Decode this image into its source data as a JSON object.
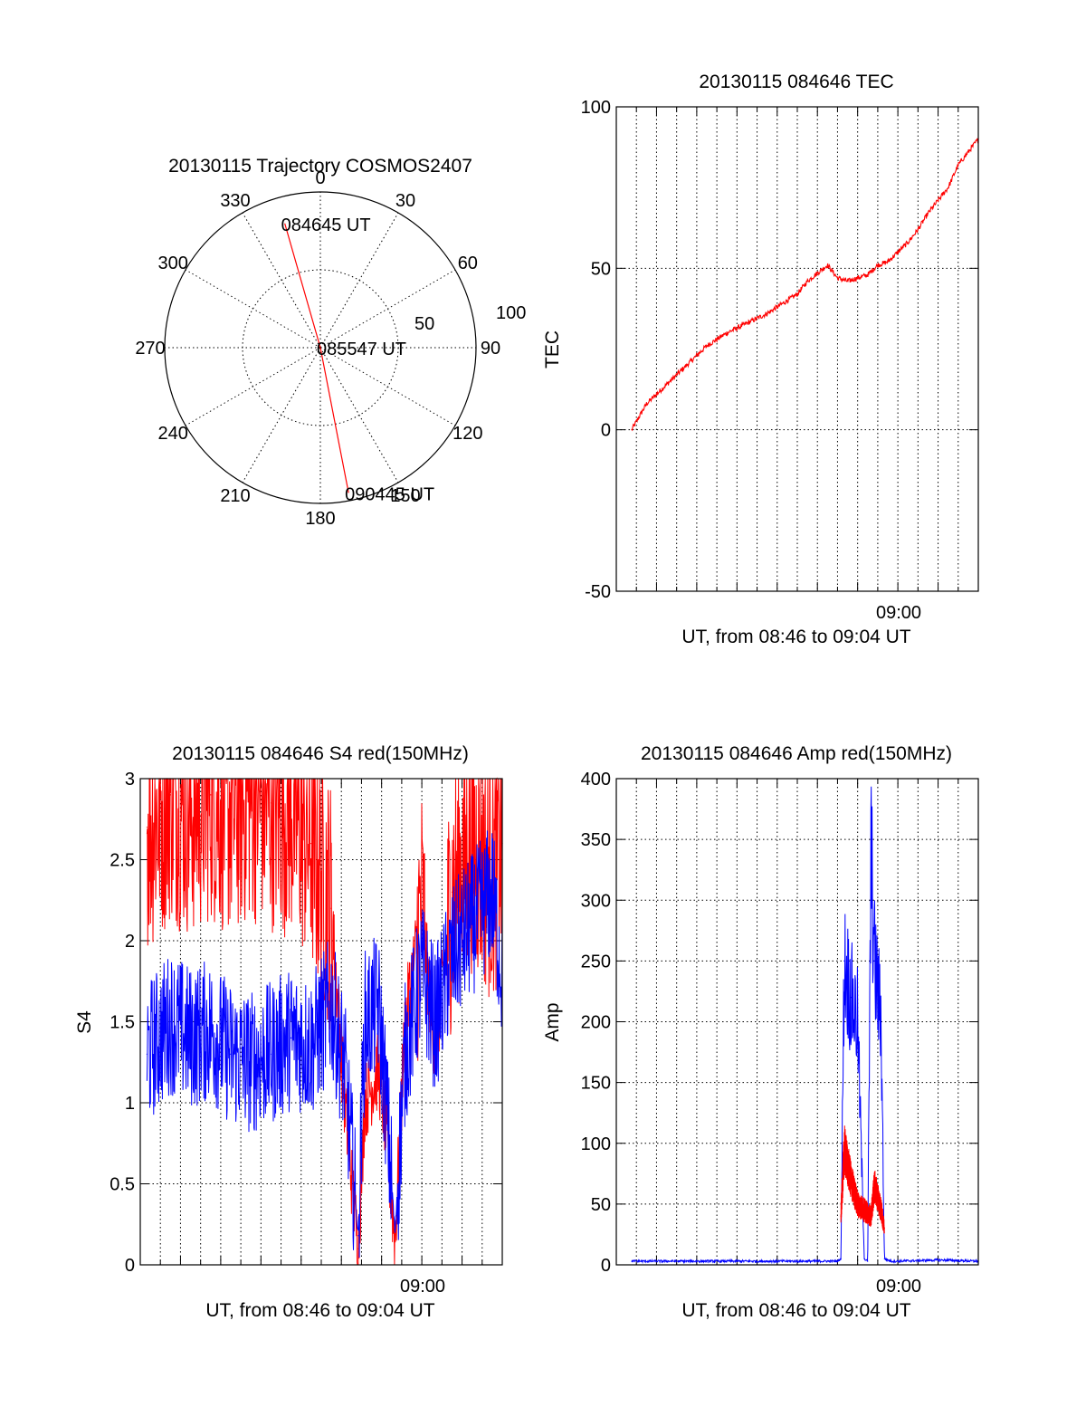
{
  "colors": {
    "red": "#ff0000",
    "blue": "#0000ff",
    "axis": "#000000",
    "background": "#ffffff"
  },
  "chart_data": [
    {
      "id": "polar",
      "type": "scatter",
      "subtype": "polar-trajectory",
      "title": "20130115 Trajectory COSMOS2407",
      "azimuth_labels": [
        "0",
        "30",
        "60",
        "90",
        "120",
        "150",
        "180",
        "210",
        "240",
        "270",
        "300",
        "330"
      ],
      "radius_labels": [
        "50",
        "100"
      ],
      "rlim": [
        0,
        100
      ],
      "series": [
        {
          "color": "red",
          "points": [
            {
              "az": 344,
              "r": 83
            },
            {
              "az": 0,
              "r": 0
            },
            {
              "az": 169,
              "r": 95
            }
          ]
        }
      ],
      "annotations": [
        {
          "label": "084645 UT",
          "az": 344,
          "r": 83
        },
        {
          "label": "085547 UT",
          "az": 0,
          "r": 0
        },
        {
          "label": "090445 UT",
          "az": 169,
          "r": 95
        }
      ],
      "grid": true
    },
    {
      "id": "tec",
      "type": "line",
      "title": "20130115 084646 TEC",
      "xlabel": "UT, from 08:46 to 09:04 UT",
      "ylabel": "TEC",
      "xtick_label": "09:00",
      "xlim": [
        "08:46:00",
        "09:04:00"
      ],
      "ylim": [
        -50,
        100
      ],
      "yticks": [
        "-50",
        "0",
        "50",
        "100"
      ],
      "grid": true,
      "series": [
        {
          "color": "red",
          "x": [
            "08:46:46",
            "08:47:30",
            "08:48:30",
            "08:49:30",
            "08:50:30",
            "08:51:30",
            "08:52:30",
            "08:53:30",
            "08:54:30",
            "08:55:00",
            "08:55:30",
            "08:56:30",
            "08:57:00",
            "08:57:30",
            "08:58:30",
            "08:59:00",
            "08:59:30",
            "09:00:00",
            "09:00:30",
            "09:01:00",
            "09:01:30",
            "09:02:00",
            "09:02:30",
            "09:03:00",
            "09:04:00"
          ],
          "values": [
            0,
            8,
            14,
            20,
            26,
            30,
            33,
            36,
            40,
            42,
            46,
            51,
            47,
            46,
            48,
            51,
            52,
            55,
            58,
            62,
            67,
            71,
            75,
            82,
            90
          ]
        }
      ]
    },
    {
      "id": "s4",
      "type": "line",
      "title": "20130115 084646 S4 red(150MHz)",
      "xlabel": "UT, from 08:46 to 09:04 UT",
      "ylabel": "S4",
      "xtick_label": "09:00",
      "xlim": [
        "08:46:00",
        "09:04:00"
      ],
      "ylim": [
        0,
        3
      ],
      "yticks": [
        "0",
        "0.5",
        "1",
        "1.5",
        "2",
        "2.5",
        "3"
      ],
      "grid": true,
      "series": [
        {
          "color": "red",
          "x": [
            "08:46:20",
            "08:47:30",
            "08:48:30",
            "08:49:30",
            "08:50:30",
            "08:51:30",
            "08:52:30",
            "08:53:30",
            "08:54:30",
            "08:55:30",
            "08:56:10",
            "08:56:50",
            "08:57:10",
            "08:57:50",
            "08:58:10",
            "08:58:40",
            "08:59:10",
            "09:00:00",
            "09:00:40",
            "09:01:30",
            "09:02:30",
            "09:03:30",
            "09:04:00"
          ],
          "values": [
            2.7,
            2.9,
            2.8,
            2.9,
            2.8,
            2.9,
            2.85,
            2.8,
            2.6,
            2.2,
            1.0,
            0.1,
            1.0,
            1.2,
            0.9,
            0.15,
            1.5,
            2.2,
            1.3,
            2.3,
            2.6,
            2.4,
            2.6
          ]
        },
        {
          "color": "blue",
          "x": [
            "08:46:20",
            "08:47:30",
            "08:48:30",
            "08:49:30",
            "08:50:30",
            "08:51:30",
            "08:52:30",
            "08:53:30",
            "08:54:30",
            "08:55:30",
            "08:56:10",
            "08:56:50",
            "08:57:10",
            "08:57:50",
            "08:58:10",
            "08:58:40",
            "08:59:10",
            "09:00:00",
            "09:00:40",
            "09:01:30",
            "09:02:30",
            "09:03:30",
            "09:04:00"
          ],
          "values": [
            1.3,
            1.5,
            1.4,
            1.45,
            1.3,
            1.25,
            1.3,
            1.4,
            1.35,
            1.6,
            1.2,
            0.18,
            1.5,
            1.6,
            1.1,
            0.2,
            1.3,
            1.8,
            1.5,
            1.9,
            2.1,
            2.3,
            1.8
          ]
        }
      ]
    },
    {
      "id": "amp",
      "type": "line",
      "title": "20130115 084646 Amp red(150MHz)",
      "xlabel": "UT, from 08:46 to 09:04 UT",
      "ylabel": "Amp",
      "xtick_label": "09:00",
      "xlim": [
        "08:46:00",
        "09:04:00"
      ],
      "ylim": [
        0,
        400
      ],
      "yticks": [
        "0",
        "50",
        "100",
        "150",
        "200",
        "250",
        "300",
        "350",
        "400"
      ],
      "grid": true,
      "series": [
        {
          "color": "blue",
          "x": [
            "08:46:46",
            "08:57:00",
            "08:57:10",
            "08:57:20",
            "08:57:40",
            "08:58:00",
            "08:58:20",
            "08:58:30",
            "08:58:40",
            "08:58:50",
            "08:59:10",
            "08:59:20",
            "08:59:40",
            "09:00:00",
            "09:02:00",
            "09:04:00"
          ],
          "values": [
            3,
            3,
            5,
            250,
            220,
            200,
            5,
            3,
            340,
            250,
            200,
            5,
            3,
            3,
            4,
            3
          ]
        },
        {
          "color": "red",
          "x": [
            "08:57:10",
            "08:57:20",
            "08:57:40",
            "08:58:00",
            "08:58:40",
            "08:58:50",
            "08:59:10",
            "08:59:20"
          ],
          "values": [
            40,
            95,
            70,
            50,
            40,
            65,
            45,
            30
          ]
        }
      ]
    }
  ]
}
